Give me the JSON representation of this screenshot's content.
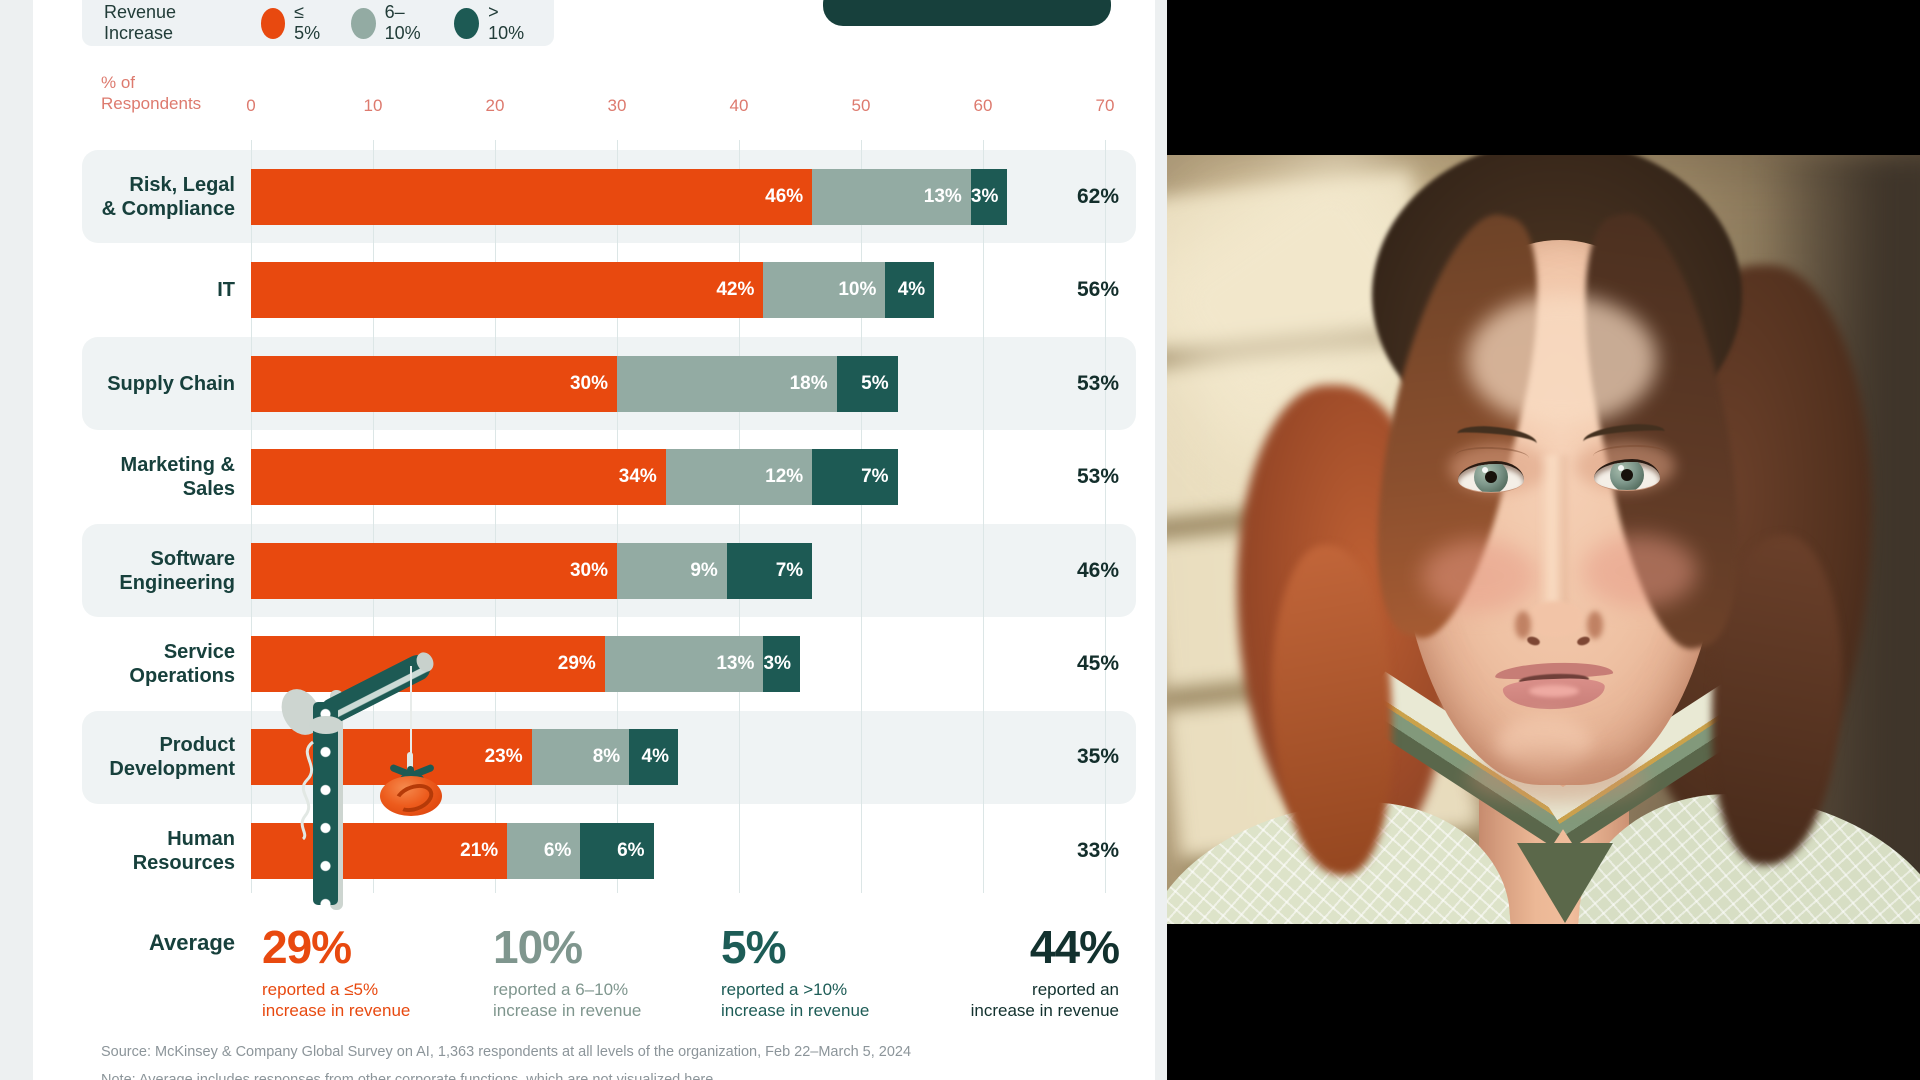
{
  "colors": {
    "orange": "#e8490f",
    "sage": "#93aba3",
    "teal": "#1d5a54",
    "dark_teal": "#17403c",
    "axis_coral": "#dd7a6e",
    "totals": "#132e2b",
    "page_bg": "#edf0f1",
    "zebra": "#eff3f4"
  },
  "legend": {
    "title": "Revenue Increase",
    "items": [
      {
        "label": "≤ 5%",
        "color": "#e8490f"
      },
      {
        "label": "6–10%",
        "color": "#93aba3"
      },
      {
        "label": "> 10%",
        "color": "#1d5a54"
      }
    ]
  },
  "axis": {
    "label_line1": "% of",
    "label_line2": "Respondents",
    "ticks": [
      "0",
      "10",
      "20",
      "30",
      "40",
      "50",
      "60",
      "70"
    ]
  },
  "chart_data": {
    "type": "bar",
    "stacked": true,
    "orientation": "horizontal",
    "xlabel": "% of Respondents",
    "xlim": [
      0,
      70
    ],
    "grid": true,
    "legend_position": "top-left",
    "categories": [
      "Risk, Legal & Compliance",
      "IT",
      "Supply Chain",
      "Marketing & Sales",
      "Software Engineering",
      "Service Operations",
      "Product Development",
      "Human Resources"
    ],
    "category_lines": [
      [
        "Risk, Legal",
        "& Compliance"
      ],
      [
        "IT"
      ],
      [
        "Supply Chain"
      ],
      [
        "Marketing &",
        "Sales"
      ],
      [
        "Software",
        "Engineering"
      ],
      [
        "Service",
        "Operations"
      ],
      [
        "Product",
        "Development"
      ],
      [
        "Human",
        "Resources"
      ]
    ],
    "series": [
      {
        "name": "≤ 5%",
        "color": "#e8490f",
        "values": [
          46,
          42,
          30,
          34,
          30,
          29,
          23,
          21
        ]
      },
      {
        "name": "6–10%",
        "color": "#93aba3",
        "values": [
          13,
          10,
          18,
          12,
          9,
          13,
          8,
          6
        ]
      },
      {
        "name": "> 10%",
        "color": "#1d5a54",
        "values": [
          3,
          4,
          5,
          7,
          7,
          3,
          4,
          6
        ]
      }
    ],
    "totals": [
      62,
      56,
      53,
      53,
      46,
      45,
      35,
      33
    ]
  },
  "average": {
    "label": "Average",
    "stats": [
      {
        "value": "29%",
        "line1": "reported a ≤5%",
        "line2": "increase in revenue",
        "color": "#e8490f"
      },
      {
        "value": "10%",
        "line1": "reported a 6–10%",
        "line2": "increase in revenue",
        "color": "#7f968e"
      },
      {
        "value": "5%",
        "line1": "reported a >10%",
        "line2": "increase in revenue",
        "color": "#1d5c56"
      },
      {
        "value": "44%",
        "line1": "reported an",
        "line2": "increase in revenue",
        "color": "#12312e"
      }
    ]
  },
  "source": "Source: McKinsey & Company Global Survey on AI, 1,363 respondents at all levels of the organization, Feb 22–March 5, 2024",
  "note": "Note: Average includes responses from other corporate functions, which are not visualized here."
}
